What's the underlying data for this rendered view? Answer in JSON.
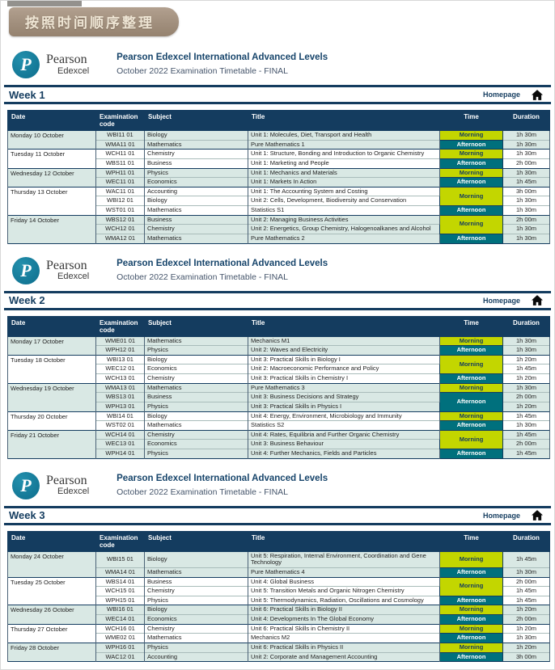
{
  "badge": {
    "label": "按照时间顺序整理"
  },
  "brand": {
    "monogram": "P",
    "pearson": "Pearson",
    "edexcel": "Edexcel",
    "title": "Pearson Edexcel International Advanced Levels",
    "subtitle": "October 2022 Examination Timetable - FINAL"
  },
  "nav": {
    "homepage": "Homepage"
  },
  "table_columns": {
    "date": "Date",
    "code": "Examination code",
    "subject": "Subject",
    "title": "Title",
    "time": "Time",
    "duration": "Duration"
  },
  "colors": {
    "navy": "#143c5f",
    "morning_bg": "#c3d600",
    "afternoon_bg": "#00707d",
    "row_shade": "#d9e8e4",
    "badge_bg": "#a18f7d",
    "logo_circle": "#0d6d8c"
  },
  "weeks": [
    {
      "label": "Week 1",
      "days": [
        {
          "date": "Monday 10 October",
          "exams": [
            {
              "code": "WBI11 01",
              "subject": "Biology",
              "title": "Unit 1: Molecules, Diet, Transport and Health",
              "time": {
                "label": "Morning",
                "span": 1
              },
              "duration": "1h 30m"
            },
            {
              "code": "WMA11 01",
              "subject": "Mathematics",
              "title": "Pure Mathematics 1",
              "time": {
                "label": "Afternoon",
                "span": 1
              },
              "duration": "1h 30m"
            }
          ]
        },
        {
          "date": "Tuesday 11 October",
          "exams": [
            {
              "code": "WCH11 01",
              "subject": "Chemistry",
              "title": "Unit 1: Structure, Bonding and Introduction to Organic Chemistry",
              "time": {
                "label": "Morning",
                "span": 1
              },
              "duration": "1h 30m"
            },
            {
              "code": "WBS11 01",
              "subject": "Business",
              "title": "Unit 1: Marketing and People",
              "time": {
                "label": "Afternoon",
                "span": 1
              },
              "duration": "2h 00m"
            }
          ]
        },
        {
          "date": "Wednesday 12 October",
          "exams": [
            {
              "code": "WPH11 01",
              "subject": "Physics",
              "title": "Unit 1: Mechanics and Materials",
              "time": {
                "label": "Morning",
                "span": 1
              },
              "duration": "1h 30m"
            },
            {
              "code": "WEC11 01",
              "subject": "Economics",
              "title": "Unit 1: Markets In Action",
              "time": {
                "label": "Afternoon",
                "span": 1
              },
              "duration": "1h 45m"
            }
          ]
        },
        {
          "date": "Thursday 13 October",
          "exams": [
            {
              "code": "WAC11 01",
              "subject": "Accounting",
              "title": "Unit 1: The Accounting System and Costing",
              "time": {
                "label": "Morning",
                "span": 2
              },
              "duration": "3h 00m"
            },
            {
              "code": "WBI12 01",
              "subject": "Biology",
              "title": "Unit 2: Cells, Development, Biodiversity and Conservation",
              "time": null,
              "duration": "1h 30m"
            },
            {
              "code": "WST01 01",
              "subject": "Mathematics",
              "title": "Statistics S1",
              "time": {
                "label": "Afternoon",
                "span": 1
              },
              "duration": "1h 30m"
            }
          ]
        },
        {
          "date": "Friday 14 October",
          "exams": [
            {
              "code": "WBS12 01",
              "subject": "Business",
              "title": "Unit 2: Managing Business Activities",
              "time": {
                "label": "Morning",
                "span": 2
              },
              "duration": "2h 00m"
            },
            {
              "code": "WCH12 01",
              "subject": "Chemistry",
              "title": "Unit 2: Energetics, Group Chemistry, Halogenoalkanes and Alcohol",
              "time": null,
              "duration": "1h 30m"
            },
            {
              "code": "WMA12 01",
              "subject": "Mathematics",
              "title": "Pure Mathematics 2",
              "time": {
                "label": "Afternoon",
                "span": 1
              },
              "duration": "1h 30m"
            }
          ]
        }
      ]
    },
    {
      "label": "Week 2",
      "days": [
        {
          "date": "Monday 17 October",
          "exams": [
            {
              "code": "WME01 01",
              "subject": "Mathematics",
              "title": "Mechanics M1",
              "time": {
                "label": "Morning",
                "span": 1
              },
              "duration": "1h 30m"
            },
            {
              "code": "WPH12 01",
              "subject": "Physics",
              "title": "Unit 2: Waves and Electricity",
              "time": {
                "label": "Afternoon",
                "span": 1
              },
              "duration": "1h 30m"
            }
          ]
        },
        {
          "date": "Tuesday 18 October",
          "exams": [
            {
              "code": "WBI13 01",
              "subject": "Biology",
              "title": "Unit 3: Practical Skills in Biology I",
              "time": {
                "label": "Morning",
                "span": 2
              },
              "duration": "1h 20m"
            },
            {
              "code": "WEC12 01",
              "subject": "Economics",
              "title": "Unit 2: Macroeconomic Performance and Policy",
              "time": null,
              "duration": "1h 45m"
            },
            {
              "code": "WCH13 01",
              "subject": "Chemistry",
              "title": "Unit 3: Practical Skills in Chemistry I",
              "time": {
                "label": "Afternoon",
                "span": 1
              },
              "duration": "1h 20m"
            }
          ]
        },
        {
          "date": "Wednesday 19 October",
          "exams": [
            {
              "code": "WMA13 01",
              "subject": "Mathematics",
              "title": "Pure Mathematics 3",
              "time": {
                "label": "Morning",
                "span": 1
              },
              "duration": "1h 30m"
            },
            {
              "code": "WBS13 01",
              "subject": "Business",
              "title": "Unit 3: Business Decisions and Strategy",
              "time": {
                "label": "Afternoon",
                "span": 2
              },
              "duration": "2h 00m"
            },
            {
              "code": "WPH13 01",
              "subject": "Physics",
              "title": "Unit 3: Practical Skills in Physics I",
              "time": null,
              "duration": "1h 20m"
            }
          ]
        },
        {
          "date": "Thursday 20 October",
          "exams": [
            {
              "code": "WBI14 01",
              "subject": "Biology",
              "title": "Unit 4: Energy, Environment, Microbiology and Immunity",
              "time": {
                "label": "Morning",
                "span": 1
              },
              "duration": "1h 45m"
            },
            {
              "code": "WST02 01",
              "subject": "Mathematics",
              "title": "Statistics S2",
              "time": {
                "label": "Afternoon",
                "span": 1
              },
              "duration": "1h 30m"
            }
          ]
        },
        {
          "date": "Friday 21 October",
          "exams": [
            {
              "code": "WCH14 01",
              "subject": "Chemistry",
              "title": "Unit 4: Rates, Equilibria and Further Organic Chemistry",
              "time": {
                "label": "Morning",
                "span": 2
              },
              "duration": "1h 45m"
            },
            {
              "code": "WEC13 01",
              "subject": "Economics",
              "title": "Unit 3: Business Behaviour",
              "time": null,
              "duration": "2h 00m"
            },
            {
              "code": "WPH14 01",
              "subject": "Physics",
              "title": "Unit 4: Further Mechanics, Fields and Particles",
              "time": {
                "label": "Afternoon",
                "span": 1
              },
              "duration": "1h 45m"
            }
          ]
        }
      ]
    },
    {
      "label": "Week 3",
      "days": [
        {
          "date": "Monday 24 October",
          "exams": [
            {
              "code": "WBI15 01",
              "subject": "Biology",
              "title": "Unit 5: Respiration, Internal Environment, Coordination and Gene Technology",
              "time": {
                "label": "Morning",
                "span": 1
              },
              "duration": "1h 45m"
            },
            {
              "code": "WMA14 01",
              "subject": "Mathematics",
              "title": "Pure Mathematics 4",
              "time": {
                "label": "Afternoon",
                "span": 1
              },
              "duration": "1h 30m"
            }
          ]
        },
        {
          "date": "Tuesday 25 October",
          "exams": [
            {
              "code": "WBS14 01",
              "subject": "Business",
              "title": "Unit 4: Global Business",
              "time": {
                "label": "Morning",
                "span": 2
              },
              "duration": "2h 00m"
            },
            {
              "code": "WCH15 01",
              "subject": "Chemistry",
              "title": "Unit 5: Transition Metals and Organic Nitrogen Chemistry",
              "time": null,
              "duration": "1h 45m"
            },
            {
              "code": "WPH15 01",
              "subject": "Physics",
              "title": "Unit 5: Thermodynamics, Radiation, Oscillations and Cosmology",
              "time": {
                "label": "Afternoon",
                "span": 1
              },
              "duration": "1h 45m"
            }
          ]
        },
        {
          "date": "Wednesday 26 October",
          "exams": [
            {
              "code": "WBI16 01",
              "subject": "Biology",
              "title": "Unit 6: Practical Skills in Biology II",
              "time": {
                "label": "Morning",
                "span": 1
              },
              "duration": "1h 20m"
            },
            {
              "code": "WEC14 01",
              "subject": "Economics",
              "title": "Unit 4: Developments In The Global Economy",
              "time": {
                "label": "Afternoon",
                "span": 1
              },
              "duration": "2h 00m"
            }
          ]
        },
        {
          "date": "Thursday 27 October",
          "exams": [
            {
              "code": "WCH16 01",
              "subject": "Chemistry",
              "title": "Unit 6: Practical Skills in Chemistry II",
              "time": {
                "label": "Morning",
                "span": 1
              },
              "duration": "1h 20m"
            },
            {
              "code": "WME02 01",
              "subject": "Mathematics",
              "title": "Mechanics M2",
              "time": {
                "label": "Afternoon",
                "span": 1
              },
              "duration": "1h 30m"
            }
          ]
        },
        {
          "date": "Friday 28 October",
          "exams": [
            {
              "code": "WPH16 01",
              "subject": "Physics",
              "title": "Unit 6: Practical Skills in Physics II",
              "time": {
                "label": "Morning",
                "span": 1
              },
              "duration": "1h 20m"
            },
            {
              "code": "WAC12 01",
              "subject": "Accounting",
              "title": "Unit 2: Corporate and Management Accounting",
              "time": {
                "label": "Afternoon",
                "span": 1
              },
              "duration": "3h 00m"
            }
          ]
        }
      ]
    }
  ]
}
